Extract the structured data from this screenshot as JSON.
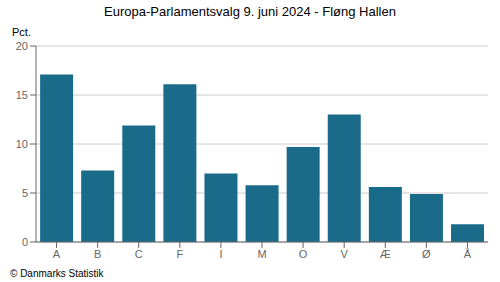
{
  "chart_data": {
    "type": "bar",
    "title": "Europa-Parlamentsvalg 9. juni 2024 - Fløng Hallen",
    "categories": [
      "A",
      "B",
      "C",
      "F",
      "I",
      "M",
      "O",
      "V",
      "Æ",
      "Ø",
      "Å"
    ],
    "values": [
      17.1,
      7.3,
      11.9,
      16.1,
      7.0,
      5.8,
      9.7,
      13.0,
      5.6,
      4.9,
      1.8
    ],
    "color": "#1a6b8a",
    "ylabel": "Pct.",
    "footer": "© Danmarks Statistik",
    "ylim": [
      0,
      20
    ],
    "yticks": [
      0,
      5,
      10,
      15,
      20
    ],
    "grid": true
  }
}
